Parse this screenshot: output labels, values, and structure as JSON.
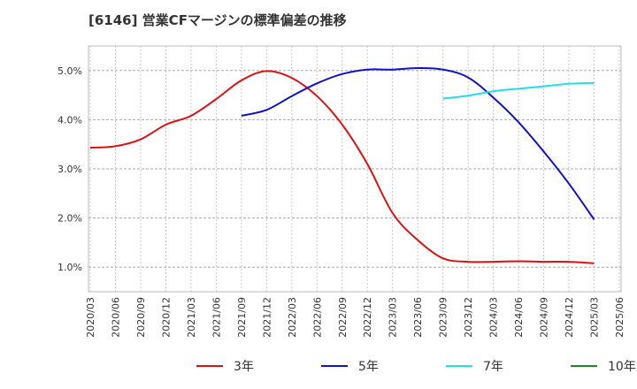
{
  "chart_data": {
    "type": "line",
    "title": "[6146]  営業CFマージンの標準偏差の推移",
    "xlabel": "",
    "ylabel": "",
    "x": [
      "2020/03",
      "2020/06",
      "2020/09",
      "2020/12",
      "2021/03",
      "2021/06",
      "2021/09",
      "2021/12",
      "2022/03",
      "2022/06",
      "2022/09",
      "2022/12",
      "2023/03",
      "2023/06",
      "2023/09",
      "2023/12",
      "2024/03",
      "2024/06",
      "2024/09",
      "2024/12",
      "2025/03",
      "2025/06"
    ],
    "ylim": [
      0.5,
      5.5
    ],
    "yticks": [
      1.0,
      2.0,
      3.0,
      4.0,
      5.0
    ],
    "ytick_labels": [
      "1.0%",
      "2.0%",
      "3.0%",
      "4.0%",
      "5.0%"
    ],
    "grid": true,
    "legend_position": "bottom",
    "series": [
      {
        "name": "3年",
        "color": "#dd1111",
        "values": [
          3.43,
          3.46,
          3.6,
          3.9,
          4.08,
          4.42,
          4.8,
          4.99,
          4.85,
          4.48,
          3.9,
          3.1,
          2.1,
          1.55,
          1.18,
          1.11,
          1.11,
          1.12,
          1.11,
          1.11,
          1.08,
          null
        ]
      },
      {
        "name": "5年",
        "color": "#1111cc",
        "values": [
          null,
          null,
          null,
          null,
          null,
          null,
          4.08,
          4.2,
          4.48,
          4.74,
          4.93,
          5.02,
          5.02,
          5.05,
          5.02,
          4.86,
          4.45,
          3.95,
          3.35,
          2.7,
          1.97,
          null
        ]
      },
      {
        "name": "7年",
        "color": "#22ddee",
        "values": [
          null,
          null,
          null,
          null,
          null,
          null,
          null,
          null,
          null,
          null,
          null,
          null,
          null,
          null,
          4.43,
          4.49,
          4.58,
          4.63,
          4.68,
          4.73,
          4.75,
          null
        ]
      },
      {
        "name": "10年",
        "color": "#228822",
        "values": [
          null,
          null,
          null,
          null,
          null,
          null,
          null,
          null,
          null,
          null,
          null,
          null,
          null,
          null,
          null,
          null,
          null,
          null,
          null,
          null,
          null,
          null
        ]
      }
    ]
  }
}
